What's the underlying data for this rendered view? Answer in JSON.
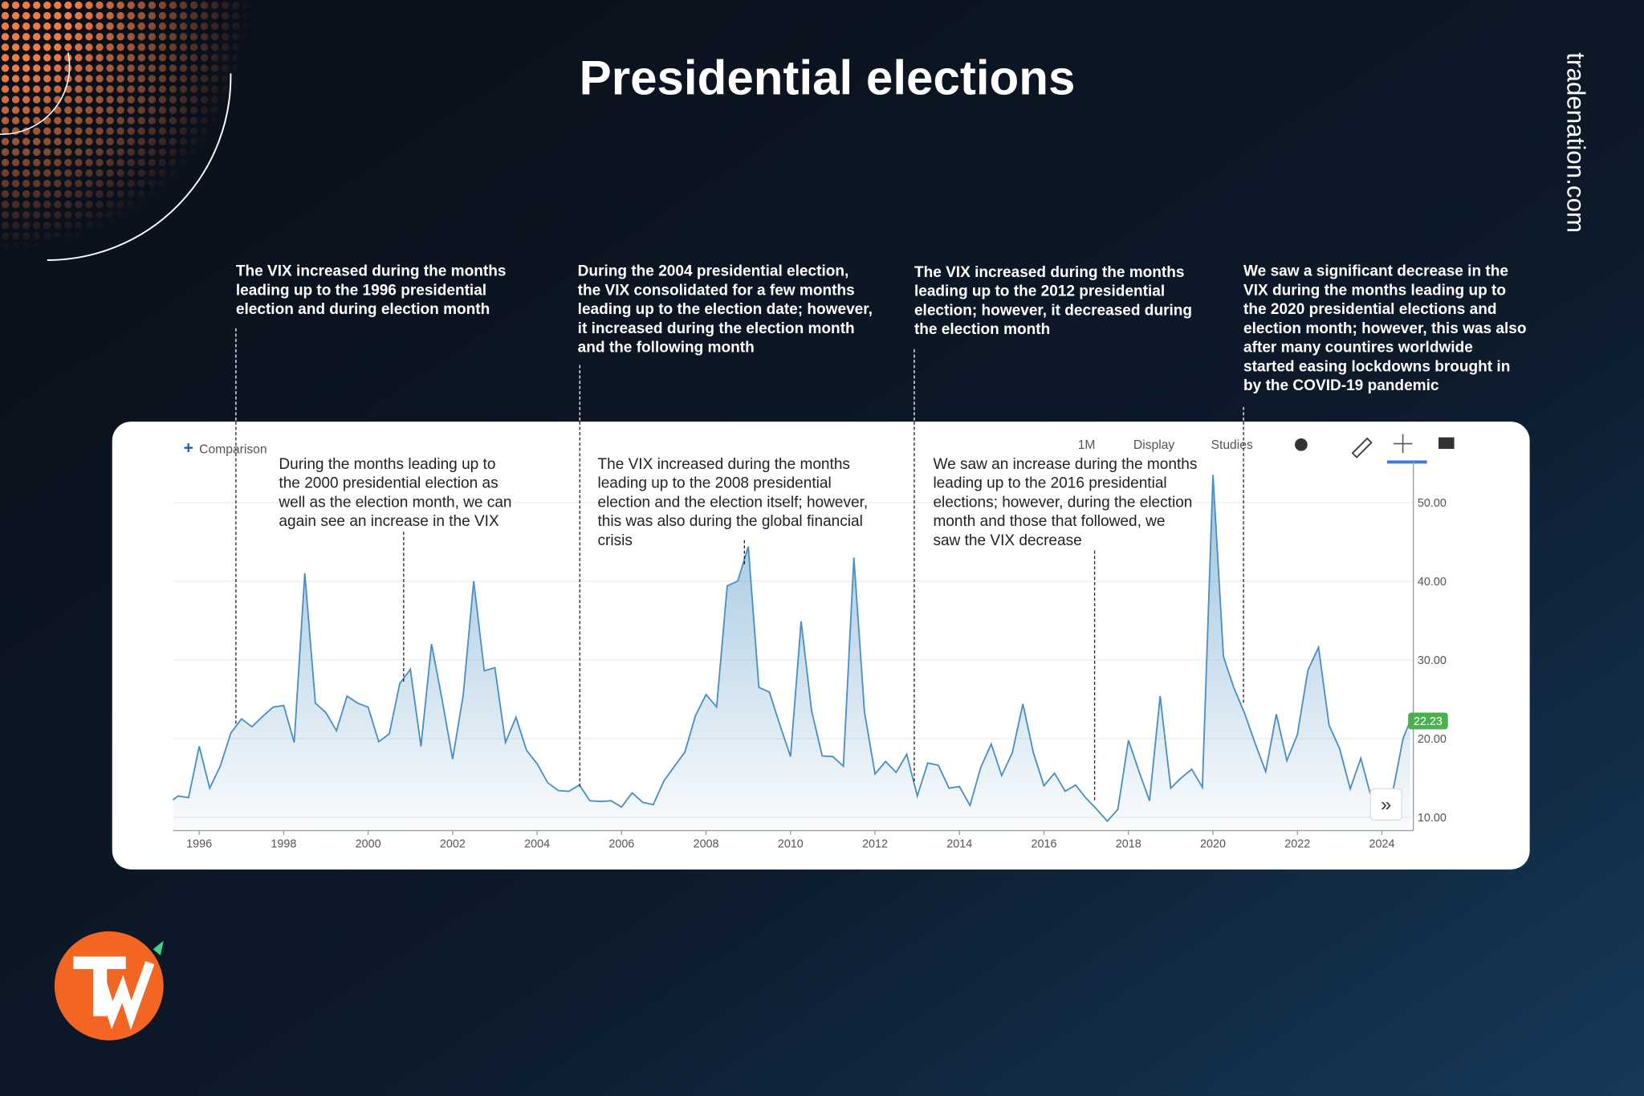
{
  "title": "Presidential elections",
  "brand": "tradenation.com",
  "toolbar": {
    "comparison": "Comparison",
    "interval": "1M",
    "display": "Display",
    "studies": "Studies"
  },
  "chart_data": {
    "type": "area",
    "color": "#4a8fc2",
    "x": [
      1995.38,
      1995.5,
      1995.75,
      1996.0,
      1996.25,
      1996.5,
      1996.75,
      1997.0,
      1997.25,
      1997.5,
      1997.75,
      1998.0,
      1998.25,
      1998.5,
      1998.75,
      1999.0,
      1999.25,
      1999.5,
      1999.75,
      2000.0,
      2000.25,
      2000.5,
      2000.75,
      2001.0,
      2001.25,
      2001.5,
      2001.75,
      2002.0,
      2002.25,
      2002.5,
      2002.75,
      2003.0,
      2003.25,
      2003.5,
      2003.75,
      2004.0,
      2004.25,
      2004.5,
      2004.75,
      2005.0,
      2005.25,
      2005.5,
      2005.75,
      2006.0,
      2006.25,
      2006.5,
      2006.75,
      2007.0,
      2007.5,
      2007.75,
      2008.0,
      2008.25,
      2008.5,
      2008.75,
      2009.0,
      2009.25,
      2009.5,
      2009.75,
      2010.0,
      2010.25,
      2010.5,
      2010.75,
      2011.0,
      2011.25,
      2011.5,
      2011.75,
      2012.0,
      2012.25,
      2012.5,
      2012.75,
      2013.0,
      2013.25,
      2013.5,
      2013.75,
      2014.0,
      2014.25,
      2014.5,
      2014.75,
      2015.0,
      2015.25,
      2015.5,
      2015.75,
      2016.0,
      2016.25,
      2016.5,
      2016.75,
      2017.0,
      2017.25,
      2017.5,
      2017.75,
      2018.0,
      2018.25,
      2018.5,
      2018.75,
      2019.0,
      2019.25,
      2019.5,
      2019.75,
      2020.0,
      2020.25,
      2020.5,
      2020.75,
      2021.0,
      2021.25,
      2021.5,
      2021.75,
      2022.0,
      2022.25,
      2022.5,
      2022.75,
      2023.0,
      2023.25,
      2023.5,
      2023.75,
      2024.25,
      2024.5,
      2024.67
    ],
    "values": [
      12.2,
      12.7,
      12.5,
      19.0,
      13.7,
      16.5,
      20.7,
      22.5,
      21.5,
      22.8,
      24.0,
      24.2,
      19.5,
      41.0,
      24.5,
      23.3,
      21.0,
      25.4,
      24.5,
      24.0,
      19.6,
      20.6,
      27.0,
      28.8,
      19.0,
      32.0,
      25.0,
      17.4,
      25.5,
      40.0,
      28.6,
      29.0,
      19.5,
      22.7,
      18.5,
      16.8,
      14.4,
      13.4,
      13.3,
      14.1,
      12.1,
      12.0,
      12.1,
      11.3,
      13.1,
      11.9,
      11.6,
      14.6,
      18.3,
      22.9,
      25.6,
      24.0,
      39.4,
      40.0,
      44.4,
      26.5,
      25.9,
      21.7,
      17.7,
      34.9,
      23.5,
      17.8,
      17.7,
      16.5,
      43.0,
      23.4,
      15.5,
      17.1,
      15.7,
      18.0,
      12.7,
      16.9,
      16.6,
      13.7,
      13.9,
      11.5,
      16.3,
      19.3,
      15.3,
      18.2,
      24.4,
      18.2,
      14.0,
      15.6,
      13.3,
      14.1,
      12.4,
      11.0,
      9.5,
      11.0,
      19.8,
      15.8,
      12.1,
      25.4,
      13.7,
      15.0,
      16.1,
      13.8,
      53.5,
      30.4,
      26.4,
      23.2,
      19.4,
      15.8,
      23.1,
      17.2,
      20.5,
      28.7,
      31.6,
      21.7,
      18.7,
      13.6,
      17.5,
      12.5,
      13.0,
      20.0,
      22.23
    ],
    "last_label": "22.23",
    "xlim": [
      1995.38,
      2024.67
    ],
    "xticks": [
      1996,
      1998,
      2000,
      2002,
      2004,
      2006,
      2008,
      2010,
      2012,
      2014,
      2016,
      2018,
      2020,
      2022,
      2024
    ],
    "ylim": [
      8.3,
      55.2
    ],
    "yticks": [
      {
        "value": 10,
        "label": "10.00"
      },
      {
        "value": 20,
        "label": "20.00"
      },
      {
        "value": 30,
        "label": "30.00"
      },
      {
        "value": 40,
        "label": "40.00"
      },
      {
        "value": 50,
        "label": "50.00"
      }
    ],
    "grid": true,
    "annotations": [
      {
        "lines": [
          "The VIX increased during the months",
          "leading up to the 1996 presidential",
          "election and during election month"
        ]
      },
      {
        "lines": [
          "During the 2004 presidential election,",
          "the VIX consolidated for a few months",
          "leading up to the election date; however,",
          "it increased during the election month",
          "and the following month"
        ]
      },
      {
        "lines": [
          "The VIX increased during the months",
          "leading up to the 2012 presidential",
          "election; however, it decreased during",
          "the election month"
        ]
      },
      {
        "lines": [
          "We saw a significant decrease in the",
          "VIX during the months leading up to",
          "the 2020 presidential elections and",
          "election month; however, this was also",
          "after many countires worldwide",
          "started easing lockdowns brought in",
          "by the COVID-19 pandemic"
        ]
      },
      {
        "lines": [
          "During the months leading up to",
          "the 2000 presidential election as",
          "well as the election month, we can",
          "again see an increase in the VIX"
        ]
      },
      {
        "lines": [
          "The VIX increased during the months",
          "leading up to the 2008 presidential",
          "election and the election itself; however,",
          "this was also during the global financial",
          "crisis"
        ]
      },
      {
        "lines": [
          "We saw an increase during the months",
          "leading up to the 2016 presidential",
          "elections; however, during the election",
          "month and those that followed, we",
          "saw the VIX decrease"
        ]
      }
    ]
  }
}
